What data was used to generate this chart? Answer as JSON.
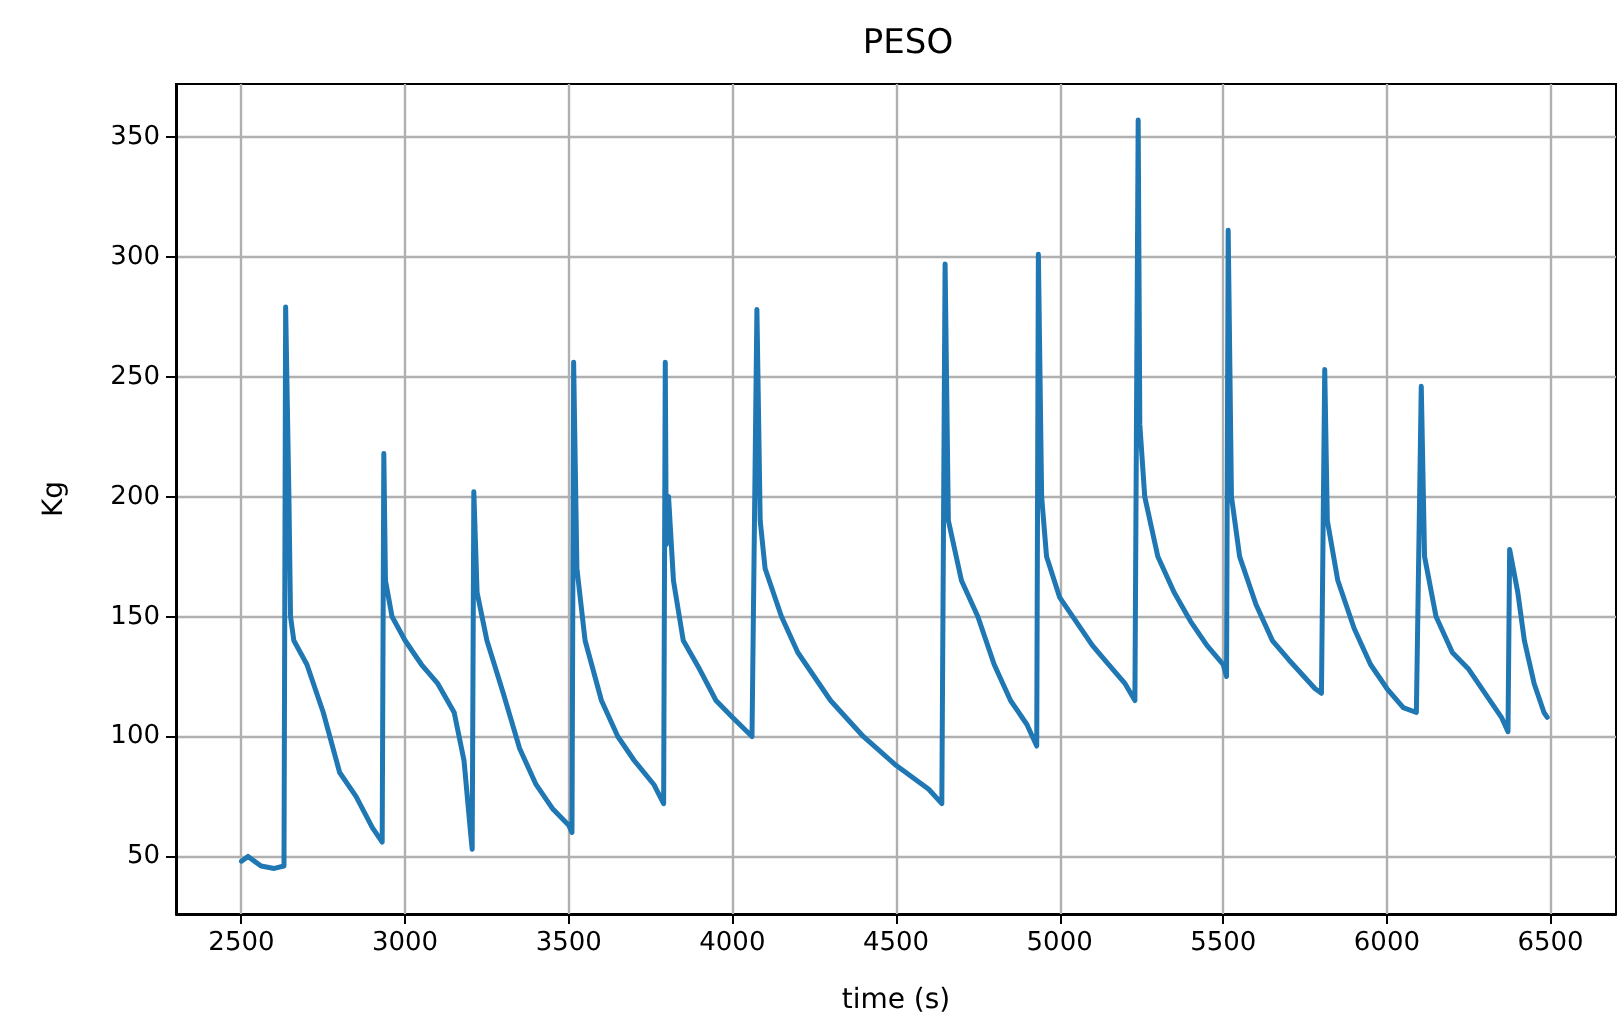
{
  "chart_data": {
    "type": "line",
    "title": "PESO",
    "xlabel": "time (s)",
    "ylabel": "Kg",
    "series": [
      {
        "color": "#1f77b4",
        "x": [
          2500,
          2520,
          2560,
          2600,
          2630,
          2635,
          2645,
          2650,
          2660,
          2700,
          2750,
          2800,
          2850,
          2900,
          2930,
          2935,
          2940,
          2960,
          3000,
          3050,
          3100,
          3150,
          3180,
          3200,
          3205,
          3210,
          3220,
          3250,
          3300,
          3350,
          3400,
          3450,
          3500,
          3510,
          3515,
          3525,
          3550,
          3600,
          3650,
          3700,
          3760,
          3790,
          3795,
          3798,
          3805,
          3820,
          3850,
          3900,
          3950,
          4000,
          4060,
          4075,
          4085,
          4100,
          4150,
          4200,
          4300,
          4400,
          4500,
          4600,
          4640,
          4650,
          4660,
          4700,
          4750,
          4800,
          4850,
          4900,
          4930,
          4935,
          4945,
          4960,
          5000,
          5050,
          5100,
          5150,
          5200,
          5230,
          5240,
          5245,
          5260,
          5300,
          5350,
          5400,
          5450,
          5500,
          5510,
          5515,
          5525,
          5550,
          5600,
          5650,
          5700,
          5780,
          5800,
          5810,
          5818,
          5850,
          5900,
          5950,
          6000,
          6050,
          6090,
          6105,
          6115,
          6150,
          6200,
          6250,
          6300,
          6350,
          6370,
          6375,
          6400,
          6420,
          6450,
          6480,
          6490
        ],
        "values": [
          48,
          50,
          46,
          45,
          46,
          279,
          200,
          150,
          140,
          130,
          110,
          85,
          75,
          62,
          56,
          218,
          165,
          150,
          140,
          130,
          122,
          110,
          90,
          60,
          53,
          202,
          160,
          140,
          118,
          95,
          80,
          70,
          63,
          60,
          256,
          170,
          140,
          115,
          100,
          90,
          80,
          72,
          256,
          180,
          200,
          165,
          140,
          128,
          115,
          108,
          100,
          278,
          190,
          170,
          150,
          135,
          115,
          100,
          88,
          78,
          72,
          297,
          190,
          165,
          150,
          130,
          115,
          105,
          96,
          301,
          200,
          175,
          158,
          148,
          138,
          130,
          122,
          115,
          357,
          230,
          200,
          175,
          160,
          148,
          138,
          130,
          125,
          311,
          200,
          175,
          155,
          140,
          132,
          120,
          118,
          253,
          190,
          165,
          145,
          130,
          120,
          112,
          110,
          246,
          175,
          150,
          135,
          128,
          118,
          108,
          102,
          178,
          160,
          140,
          122,
          110,
          108
        ]
      }
    ],
    "xlim": [
      2300,
      6700
    ],
    "ylim": [
      26,
      372
    ],
    "xticks": [
      2500,
      3000,
      3500,
      4000,
      4500,
      5000,
      5500,
      6000,
      6500
    ],
    "yticks": [
      50,
      100,
      150,
      200,
      250,
      300,
      350
    ],
    "grid": true,
    "marker": "none",
    "line_style": "solid"
  }
}
